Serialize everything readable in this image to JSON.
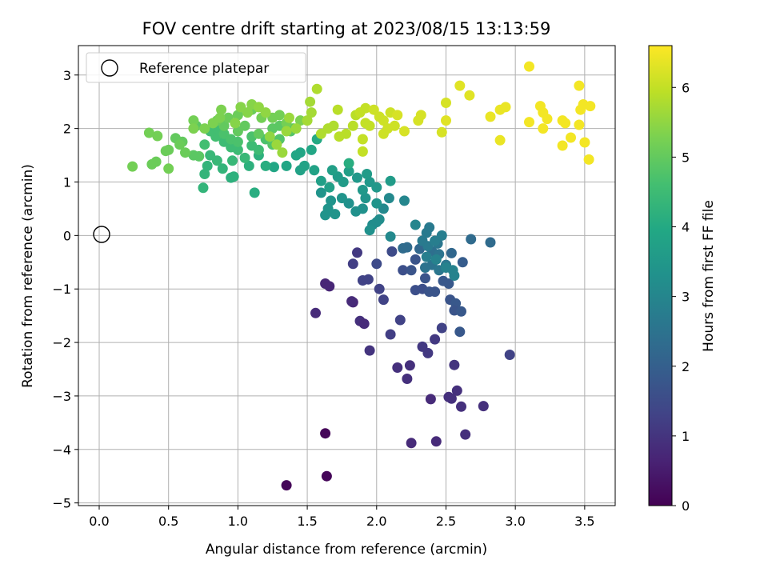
{
  "chart_data": {
    "type": "scatter",
    "title": "FOV centre drift starting at 2023/08/15 13:13:59",
    "xlabel": "Angular distance from reference (arcmin)",
    "ylabel": "Rotation from reference (arcmin)",
    "xlim": [
      -0.15,
      3.72
    ],
    "ylim": [
      -5.05,
      3.55
    ],
    "xticks": [
      0.0,
      0.5,
      1.0,
      1.5,
      2.0,
      2.5,
      3.0,
      3.5
    ],
    "xtick_labels": [
      "0.0",
      "0.5",
      "1.0",
      "1.5",
      "2.0",
      "2.5",
      "3.0",
      "3.5"
    ],
    "yticks": [
      -5,
      -4,
      -3,
      -2,
      -1,
      0,
      1,
      2,
      3
    ],
    "ytick_labels": [
      "−5",
      "−4",
      "−3",
      "−2",
      "−1",
      "0",
      "1",
      "2",
      "3"
    ],
    "grid": true,
    "colormap": "viridis",
    "colorbar": {
      "label": "Hours from first FF file",
      "range": [
        0,
        6.6
      ],
      "ticks": [
        0,
        1,
        2,
        3,
        4,
        5,
        6
      ],
      "tick_labels": [
        "0",
        "1",
        "2",
        "3",
        "4",
        "5",
        "6"
      ]
    },
    "legend": {
      "position": "top-left",
      "entries": [
        "Reference platepar"
      ]
    },
    "reference_point": {
      "x": 0.0,
      "y": 0.0
    },
    "points": [
      [
        1.35,
        -4.67,
        0.1
      ],
      [
        1.63,
        -3.7,
        0.1
      ],
      [
        1.64,
        -4.5,
        0.1
      ],
      [
        1.63,
        -0.9,
        0.7
      ],
      [
        1.66,
        -0.95,
        0.7
      ],
      [
        1.56,
        -1.45,
        0.8
      ],
      [
        1.83,
        -1.25,
        0.7
      ],
      [
        1.82,
        -1.23,
        0.8
      ],
      [
        1.88,
        -1.6,
        0.9
      ],
      [
        1.91,
        -1.65,
        0.8
      ],
      [
        1.95,
        -2.15,
        1.0
      ],
      [
        2.15,
        -2.47,
        0.9
      ],
      [
        2.24,
        -2.43,
        0.9
      ],
      [
        2.22,
        -2.68,
        0.9
      ],
      [
        2.25,
        -3.88,
        0.8
      ],
      [
        2.43,
        -3.85,
        0.8
      ],
      [
        2.39,
        -3.06,
        0.8
      ],
      [
        2.52,
        -3.02,
        0.9
      ],
      [
        2.54,
        -3.05,
        0.9
      ],
      [
        2.58,
        -2.9,
        0.9
      ],
      [
        2.61,
        -3.2,
        0.9
      ],
      [
        2.64,
        -3.72,
        0.9
      ],
      [
        2.77,
        -3.19,
        0.9
      ],
      [
        2.56,
        -2.42,
        1.0
      ],
      [
        2.37,
        -2.2,
        1.1
      ],
      [
        2.33,
        -2.08,
        1.1
      ],
      [
        2.42,
        -1.94,
        1.1
      ],
      [
        2.47,
        -1.73,
        1.3
      ],
      [
        2.1,
        -1.85,
        1.2
      ],
      [
        2.17,
        -1.58,
        1.3
      ],
      [
        2.96,
        -2.23,
        1.3
      ],
      [
        1.86,
        -0.32,
        1.1
      ],
      [
        1.83,
        -0.53,
        1.2
      ],
      [
        1.9,
        -0.84,
        1.3
      ],
      [
        1.94,
        -0.82,
        1.3
      ],
      [
        2.02,
        -1.0,
        1.3
      ],
      [
        2.05,
        -1.2,
        1.3
      ],
      [
        2.0,
        -0.53,
        1.5
      ],
      [
        2.11,
        -0.3,
        1.5
      ],
      [
        2.19,
        -0.65,
        1.6
      ],
      [
        2.25,
        -0.65,
        1.7
      ],
      [
        2.28,
        -0.45,
        1.7
      ],
      [
        2.28,
        -1.02,
        1.6
      ],
      [
        2.33,
        -1.0,
        1.6
      ],
      [
        2.38,
        -1.05,
        1.7
      ],
      [
        2.42,
        -1.05,
        1.7
      ],
      [
        2.35,
        -0.8,
        1.7
      ],
      [
        2.48,
        -0.85,
        1.8
      ],
      [
        2.52,
        -0.9,
        1.8
      ],
      [
        2.53,
        -1.2,
        1.7
      ],
      [
        2.57,
        -1.27,
        1.8
      ],
      [
        2.56,
        -1.4,
        1.7
      ],
      [
        2.61,
        -1.42,
        1.8
      ],
      [
        2.6,
        -1.8,
        1.8
      ],
      [
        2.62,
        -0.5,
        1.9
      ],
      [
        2.68,
        -0.07,
        2.3
      ],
      [
        2.82,
        -0.13,
        2.3
      ],
      [
        2.54,
        -0.33,
        2.2
      ],
      [
        2.31,
        -0.25,
        2.2
      ],
      [
        2.19,
        -0.24,
        2.3
      ],
      [
        2.22,
        -0.22,
        2.3
      ],
      [
        2.4,
        -0.3,
        2.4
      ],
      [
        2.45,
        -0.35,
        2.5
      ],
      [
        2.4,
        -0.55,
        2.5
      ],
      [
        2.35,
        -0.6,
        2.5
      ],
      [
        2.45,
        -0.65,
        2.6
      ],
      [
        2.5,
        -0.55,
        2.6
      ],
      [
        2.44,
        -0.15,
        2.6
      ],
      [
        2.38,
        0.15,
        2.7
      ],
      [
        2.36,
        0.05,
        2.7
      ],
      [
        2.33,
        -0.1,
        2.7
      ],
      [
        2.37,
        -0.2,
        2.7
      ],
      [
        2.42,
        -0.1,
        2.8
      ],
      [
        2.47,
        0.0,
        2.8
      ],
      [
        2.36,
        -0.4,
        2.8
      ],
      [
        2.43,
        -0.45,
        2.9
      ],
      [
        2.5,
        -0.6,
        2.9
      ],
      [
        2.55,
        -0.65,
        2.9
      ],
      [
        2.56,
        -0.75,
        2.9
      ],
      [
        2.28,
        0.2,
        3.0
      ],
      [
        2.1,
        -0.02,
        3.1
      ],
      [
        2.2,
        0.65,
        3.0
      ],
      [
        2.09,
        0.7,
        3.1
      ],
      [
        2.05,
        0.5,
        3.1
      ],
      [
        2.0,
        0.25,
        3.2
      ],
      [
        1.97,
        0.2,
        3.2
      ],
      [
        2.02,
        0.3,
        3.2
      ],
      [
        1.95,
        0.1,
        3.3
      ],
      [
        1.85,
        0.45,
        3.3
      ],
      [
        1.9,
        0.5,
        3.3
      ],
      [
        1.8,
        0.6,
        3.3
      ],
      [
        1.7,
        0.4,
        3.4
      ],
      [
        1.63,
        0.38,
        3.4
      ],
      [
        1.65,
        0.5,
        3.4
      ],
      [
        1.75,
        0.7,
        3.4
      ],
      [
        1.6,
        0.8,
        3.4
      ],
      [
        1.67,
        0.65,
        3.4
      ],
      [
        1.92,
        0.7,
        3.4
      ],
      [
        2.0,
        0.6,
        3.4
      ],
      [
        2.0,
        0.9,
        3.5
      ],
      [
        1.95,
        1.0,
        3.5
      ],
      [
        1.9,
        0.85,
        3.5
      ],
      [
        1.86,
        1.08,
        3.5
      ],
      [
        2.1,
        1.02,
        3.6
      ],
      [
        1.93,
        1.15,
        3.6
      ],
      [
        1.76,
        1.0,
        3.6
      ],
      [
        1.72,
        1.1,
        3.6
      ],
      [
        1.68,
        1.22,
        3.7
      ],
      [
        1.8,
        1.2,
        3.7
      ],
      [
        1.66,
        0.9,
        3.7
      ],
      [
        1.6,
        1.02,
        3.7
      ],
      [
        1.55,
        1.22,
        3.8
      ],
      [
        1.45,
        1.22,
        3.8
      ],
      [
        1.48,
        1.3,
        3.8
      ],
      [
        1.42,
        1.5,
        3.9
      ],
      [
        1.45,
        1.55,
        3.9
      ],
      [
        1.53,
        1.6,
        3.9
      ],
      [
        1.57,
        1.8,
        4.0
      ],
      [
        1.35,
        1.3,
        3.9
      ],
      [
        1.26,
        1.28,
        3.9
      ],
      [
        1.8,
        1.35,
        4.1
      ],
      [
        1.12,
        0.8,
        4.1
      ],
      [
        1.2,
        1.3,
        4.1
      ],
      [
        1.15,
        1.5,
        4.2
      ],
      [
        1.08,
        1.3,
        4.2
      ],
      [
        0.97,
        1.1,
        4.2
      ],
      [
        0.95,
        1.08,
        4.2
      ],
      [
        0.89,
        1.25,
        4.3
      ],
      [
        0.76,
        1.15,
        4.3
      ],
      [
        0.75,
        0.89,
        4.3
      ],
      [
        0.78,
        1.3,
        4.3
      ],
      [
        0.85,
        1.4,
        4.4
      ],
      [
        0.8,
        1.5,
        4.4
      ],
      [
        0.96,
        1.4,
        4.4
      ],
      [
        1.05,
        1.45,
        4.4
      ],
      [
        1.0,
        1.6,
        4.5
      ],
      [
        1.15,
        1.6,
        4.5
      ],
      [
        1.1,
        1.68,
        4.5
      ],
      [
        0.95,
        1.65,
        4.5
      ],
      [
        0.9,
        1.75,
        4.5
      ],
      [
        0.84,
        1.85,
        4.6
      ],
      [
        0.76,
        1.7,
        4.6
      ],
      [
        0.8,
        1.95,
        4.6
      ],
      [
        0.85,
        2.0,
        4.6
      ],
      [
        0.9,
        1.9,
        4.7
      ],
      [
        0.95,
        1.8,
        4.7
      ],
      [
        1.0,
        1.75,
        4.7
      ],
      [
        1.1,
        1.85,
        4.7
      ],
      [
        1.2,
        1.8,
        4.7
      ],
      [
        1.3,
        1.8,
        4.8
      ],
      [
        1.25,
        1.7,
        4.8
      ],
      [
        1.38,
        1.95,
        4.8
      ],
      [
        1.4,
        2.0,
        4.9
      ],
      [
        1.3,
        2.05,
        4.9
      ],
      [
        1.25,
        2.0,
        4.9
      ],
      [
        1.15,
        1.9,
        5.0
      ],
      [
        1.05,
        2.05,
        5.0
      ],
      [
        1.0,
        1.95,
        5.0
      ],
      [
        0.9,
        2.05,
        5.0
      ],
      [
        0.85,
        2.15,
        5.1
      ],
      [
        0.93,
        2.2,
        5.1
      ],
      [
        1.0,
        2.25,
        5.1
      ],
      [
        1.1,
        2.35,
        5.1
      ],
      [
        1.17,
        2.2,
        5.2
      ],
      [
        1.25,
        2.2,
        5.2
      ],
      [
        1.3,
        2.25,
        5.2
      ],
      [
        1.35,
        2.1,
        5.2
      ],
      [
        1.45,
        2.15,
        5.3
      ],
      [
        0.7,
        2.05,
        4.9
      ],
      [
        0.68,
        1.5,
        4.9
      ],
      [
        0.72,
        1.48,
        4.9
      ],
      [
        0.6,
        1.75,
        5.0
      ],
      [
        0.55,
        1.82,
        5.0
      ],
      [
        0.5,
        1.6,
        5.1
      ],
      [
        0.48,
        1.58,
        5.1
      ],
      [
        0.41,
        1.38,
        5.1
      ],
      [
        0.38,
        1.33,
        5.1
      ],
      [
        0.5,
        1.25,
        5.2
      ],
      [
        0.58,
        1.7,
        5.1
      ],
      [
        0.62,
        1.55,
        5.1
      ],
      [
        0.36,
        1.92,
        5.2
      ],
      [
        0.42,
        1.86,
        5.2
      ],
      [
        0.24,
        1.29,
        5.2
      ],
      [
        0.68,
        2.15,
        5.2
      ],
      [
        0.68,
        2.0,
        5.3
      ],
      [
        0.76,
        2.0,
        5.3
      ],
      [
        0.82,
        2.1,
        5.3
      ],
      [
        0.87,
        2.2,
        5.3
      ],
      [
        0.88,
        2.35,
        5.3
      ],
      [
        0.98,
        2.1,
        5.4
      ],
      [
        1.02,
        2.4,
        5.4
      ],
      [
        1.07,
        2.3,
        5.4
      ],
      [
        1.1,
        2.45,
        5.4
      ],
      [
        1.15,
        2.4,
        5.5
      ],
      [
        1.2,
        2.3,
        5.5
      ],
      [
        1.23,
        1.85,
        5.5
      ],
      [
        1.28,
        1.7,
        5.6
      ],
      [
        1.32,
        1.55,
        5.6
      ],
      [
        1.35,
        1.95,
        5.6
      ],
      [
        1.37,
        2.2,
        5.6
      ],
      [
        1.42,
        2.0,
        5.6
      ],
      [
        1.5,
        2.15,
        5.7
      ],
      [
        1.53,
        2.3,
        5.7
      ],
      [
        1.52,
        2.5,
        5.7
      ],
      [
        1.57,
        2.74,
        5.8
      ],
      [
        1.6,
        1.9,
        5.8
      ],
      [
        1.65,
        2.0,
        5.8
      ],
      [
        1.69,
        2.05,
        5.8
      ],
      [
        1.73,
        1.85,
        5.9
      ],
      [
        1.72,
        2.35,
        5.9
      ],
      [
        1.78,
        1.9,
        5.9
      ],
      [
        1.83,
        2.05,
        5.9
      ],
      [
        1.85,
        2.25,
        5.9
      ],
      [
        1.88,
        2.3,
        6.0
      ],
      [
        1.92,
        2.1,
        6.0
      ],
      [
        1.95,
        2.05,
        6.0
      ],
      [
        1.9,
        1.8,
        6.0
      ],
      [
        1.9,
        1.57,
        6.0
      ],
      [
        1.92,
        2.38,
        6.0
      ],
      [
        1.98,
        2.35,
        6.1
      ],
      [
        2.02,
        2.22,
        6.1
      ],
      [
        2.05,
        2.15,
        6.1
      ],
      [
        2.08,
        2.0,
        6.1
      ],
      [
        2.05,
        1.9,
        6.1
      ],
      [
        2.1,
        2.3,
        6.1
      ],
      [
        2.13,
        2.05,
        6.1
      ],
      [
        2.15,
        2.25,
        6.2
      ],
      [
        2.2,
        1.95,
        6.2
      ],
      [
        2.3,
        2.15,
        6.2
      ],
      [
        2.32,
        2.25,
        6.2
      ],
      [
        2.47,
        1.93,
        6.2
      ],
      [
        2.5,
        2.15,
        6.3
      ],
      [
        2.5,
        2.48,
        6.2
      ],
      [
        2.6,
        2.8,
        6.3
      ],
      [
        2.67,
        2.62,
        6.3
      ],
      [
        2.82,
        2.22,
        6.4
      ],
      [
        2.89,
        2.35,
        6.4
      ],
      [
        2.93,
        2.4,
        6.4
      ],
      [
        2.89,
        1.78,
        6.4
      ],
      [
        3.1,
        3.16,
        6.5
      ],
      [
        3.1,
        2.12,
        6.5
      ],
      [
        3.18,
        2.42,
        6.5
      ],
      [
        3.2,
        2.3,
        6.5
      ],
      [
        3.2,
        2.0,
        6.5
      ],
      [
        3.23,
        2.18,
        6.5
      ],
      [
        3.34,
        2.15,
        6.5
      ],
      [
        3.36,
        2.1,
        6.5
      ],
      [
        3.34,
        1.68,
        6.5
      ],
      [
        3.4,
        1.83,
        6.5
      ],
      [
        3.46,
        2.8,
        6.5
      ],
      [
        3.46,
        2.07,
        6.5
      ],
      [
        3.47,
        2.35,
        6.5
      ],
      [
        3.49,
        2.45,
        6.5
      ],
      [
        3.5,
        1.74,
        6.5
      ],
      [
        3.53,
        1.42,
        6.5
      ],
      [
        3.54,
        2.42,
        6.5
      ]
    ]
  }
}
